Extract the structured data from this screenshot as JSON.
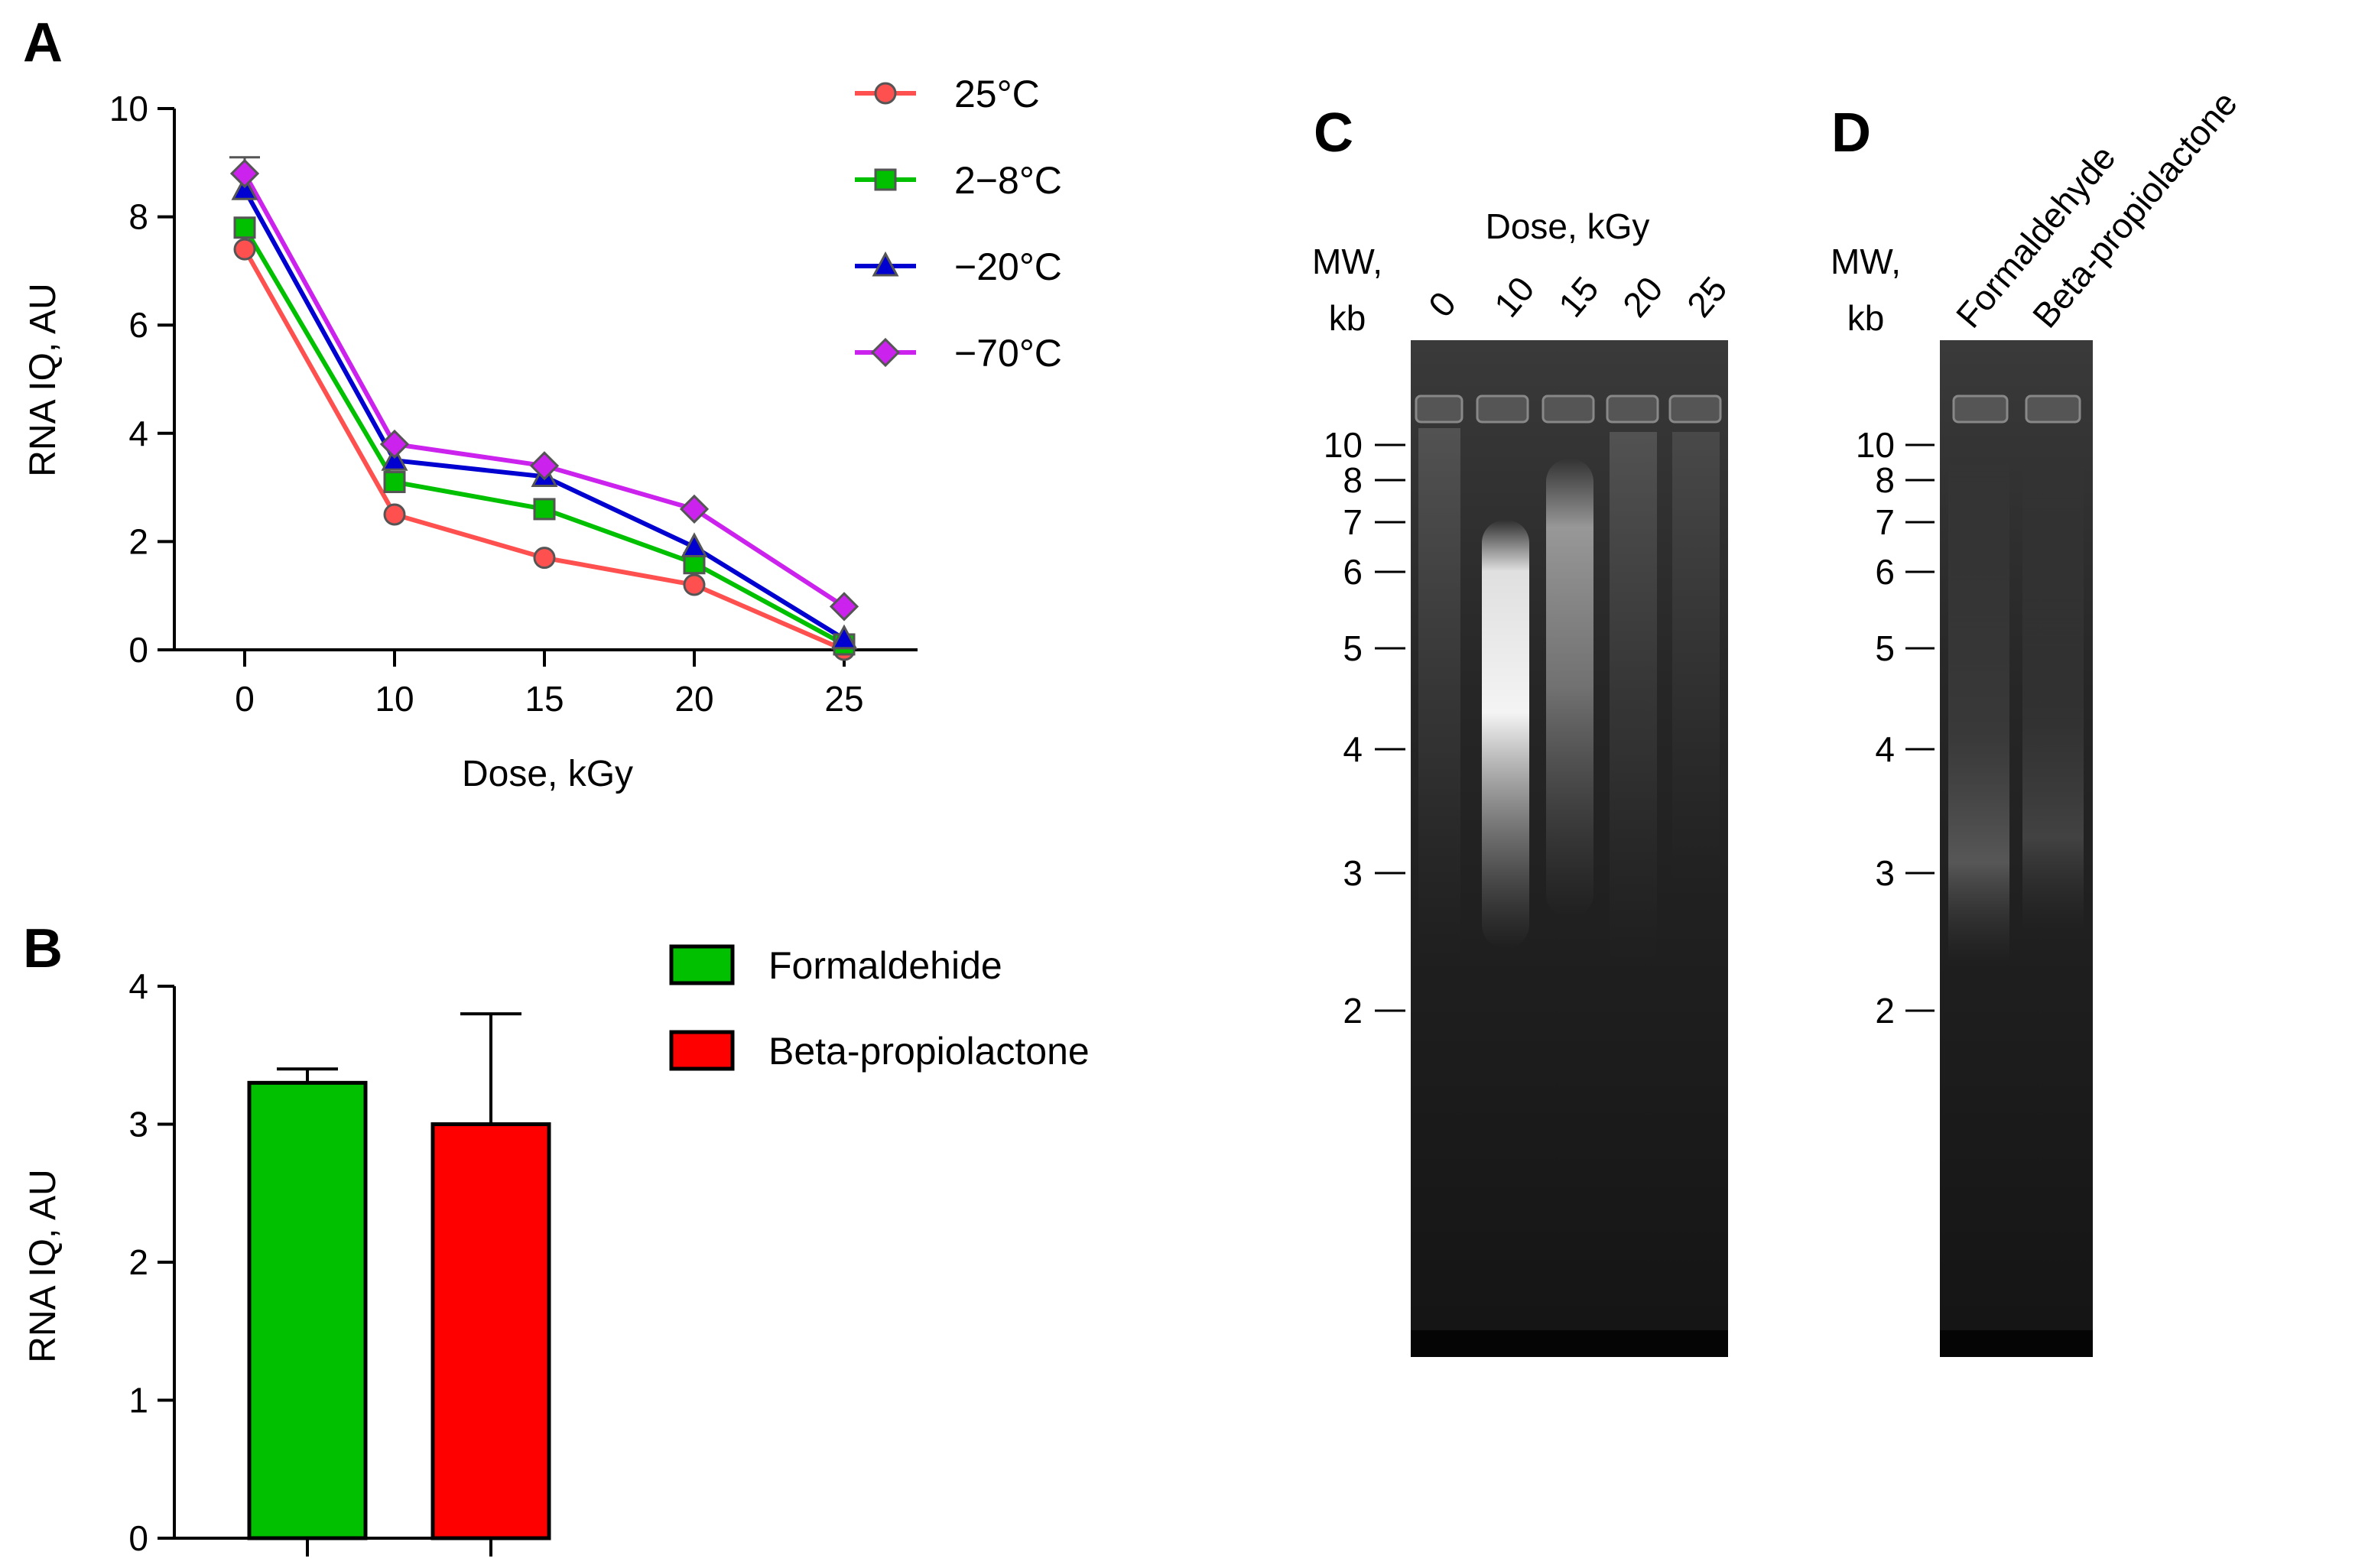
{
  "panels": {
    "a": "A",
    "b": "B",
    "c": "C",
    "d": "D"
  },
  "colors": {
    "25C": "#ff5050",
    "2-8C": "#00c000",
    "-20C": "#0000d0",
    "-70C": "#cc22ee",
    "formaldehyde": "#00c000",
    "bpl": "#ff0000",
    "marker_outline": "#555555"
  },
  "chart_data": [
    {
      "type": "line",
      "panel": "A",
      "xlabel": "Dose, kGy",
      "ylabel": "RNA IQ, AU",
      "categories": [
        "0",
        "10",
        "15",
        "20",
        "25"
      ],
      "yticks": [
        "0",
        "2",
        "4",
        "6",
        "8",
        "10"
      ],
      "ylim": [
        0,
        10
      ],
      "legend_position": "right",
      "series": [
        {
          "name": "25°C",
          "marker": "circle",
          "color_key": "25C",
          "values": [
            7.4,
            2.5,
            1.7,
            1.2,
            0.0
          ]
        },
        {
          "name": "2−8°C",
          "marker": "square",
          "color_key": "2-8C",
          "values": [
            7.8,
            3.1,
            2.6,
            1.6,
            0.1
          ]
        },
        {
          "name": "−20°C",
          "marker": "triangle",
          "color_key": "-20C",
          "values": [
            8.5,
            3.5,
            3.2,
            1.9,
            0.2
          ]
        },
        {
          "name": "−70°C",
          "marker": "diamond",
          "color_key": "-70C",
          "values": [
            8.8,
            3.8,
            3.4,
            2.6,
            0.8
          ]
        }
      ],
      "error_bar_top": [
        9.1,
        null,
        null,
        null,
        null
      ]
    },
    {
      "type": "bar",
      "panel": "B",
      "xlabel": "",
      "ylabel": "RNA IQ, AU",
      "categories": [
        "Formaldehide",
        "Beta-propiolactone"
      ],
      "values": [
        3.3,
        3.0
      ],
      "errors": [
        0.1,
        0.8
      ],
      "color_keys": [
        "formaldehyde",
        "bpl"
      ],
      "yticks": [
        "0",
        "1",
        "2",
        "3",
        "4"
      ],
      "ylim": [
        0,
        4
      ],
      "legend_position": "top-right"
    }
  ],
  "gel_c": {
    "title": "Dose, kGy",
    "mw_label_1": "MW,",
    "mw_label_2": "kb",
    "lanes": [
      "0",
      "10",
      "15",
      "20",
      "25"
    ],
    "markers": [
      "10",
      "8",
      "7",
      "6",
      "5",
      "4",
      "3",
      "2"
    ]
  },
  "gel_d": {
    "mw_label_1": "MW,",
    "mw_label_2": "kb",
    "lanes": [
      "Formaldehyde",
      "Beta-propiolactone"
    ],
    "markers": [
      "10",
      "8",
      "7",
      "6",
      "5",
      "4",
      "3",
      "2"
    ]
  }
}
